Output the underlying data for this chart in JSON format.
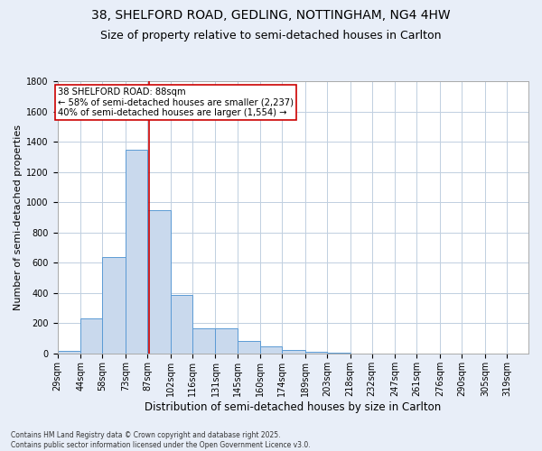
{
  "title_line1": "38, SHELFORD ROAD, GEDLING, NOTTINGHAM, NG4 4HW",
  "title_line2": "Size of property relative to semi-detached houses in Carlton",
  "xlabel": "Distribution of semi-detached houses by size in Carlton",
  "ylabel": "Number of semi-detached properties",
  "footer_line1": "Contains HM Land Registry data © Crown copyright and database right 2025.",
  "footer_line2": "Contains public sector information licensed under the Open Government Licence v3.0.",
  "bin_labels": [
    "29sqm",
    "44sqm",
    "58sqm",
    "73sqm",
    "87sqm",
    "102sqm",
    "116sqm",
    "131sqm",
    "145sqm",
    "160sqm",
    "174sqm",
    "189sqm",
    "203sqm",
    "218sqm",
    "232sqm",
    "247sqm",
    "261sqm",
    "276sqm",
    "290sqm",
    "305sqm",
    "319sqm"
  ],
  "bin_edges": [
    29,
    44,
    58,
    73,
    87,
    102,
    116,
    131,
    145,
    160,
    174,
    189,
    203,
    218,
    232,
    247,
    261,
    276,
    290,
    305,
    319
  ],
  "bar_heights": [
    20,
    230,
    640,
    1350,
    950,
    390,
    165,
    165,
    85,
    45,
    25,
    10,
    5,
    2,
    1,
    1,
    0,
    0,
    0,
    0,
    0
  ],
  "bar_color": "#c9d9ed",
  "bar_edge_color": "#5b9bd5",
  "red_line_x": 88,
  "red_line_color": "#cc0000",
  "annotation_text_line1": "38 SHELFORD ROAD: 88sqm",
  "annotation_text_line2": "← 58% of semi-detached houses are smaller (2,237)",
  "annotation_text_line3": "40% of semi-detached houses are larger (1,554) →",
  "annotation_box_color": "#ffffff",
  "annotation_box_edge_color": "#cc0000",
  "ylim": [
    0,
    1800
  ],
  "yticks": [
    0,
    200,
    400,
    600,
    800,
    1000,
    1200,
    1400,
    1600,
    1800
  ],
  "background_color": "#e8eef8",
  "plot_background_color": "#ffffff",
  "grid_color": "#c0cfe0",
  "title_fontsize": 10,
  "subtitle_fontsize": 9,
  "annotation_fontsize": 7.2,
  "ylabel_fontsize": 8,
  "xlabel_fontsize": 8.5,
  "tick_fontsize": 7,
  "footer_fontsize": 5.5
}
